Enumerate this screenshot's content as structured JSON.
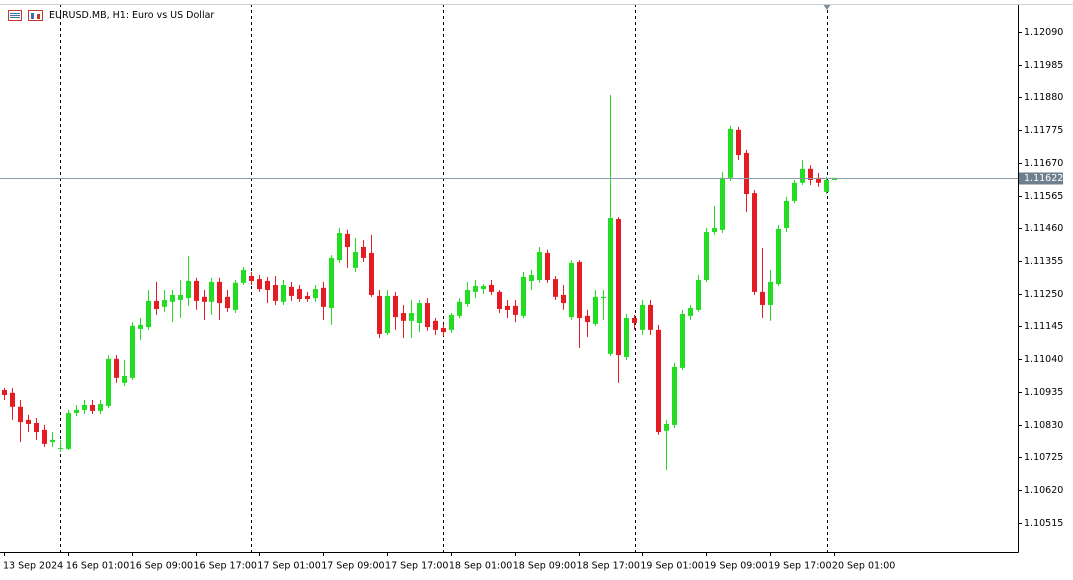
{
  "chart_data": {
    "type": "candlestick",
    "title": "EURUSD.MB, H1:  Euro vs US Dollar",
    "up_color": "#22dd22",
    "down_color": "#e51c23",
    "grid": false,
    "categories": [
      "13 Sep 2024",
      null,
      null,
      null,
      null,
      null,
      null,
      null,
      "16 Sep 01:00",
      null,
      null,
      null,
      null,
      null,
      null,
      null,
      "16 Sep 09:00",
      null,
      null,
      null,
      null,
      null,
      null,
      null,
      "16 Sep 17:00",
      null,
      null,
      null,
      null,
      null,
      null,
      null,
      "17 Sep 01:00",
      null,
      null,
      null,
      null,
      null,
      null,
      null,
      "17 Sep 09:00",
      null,
      null,
      null,
      null,
      null,
      null,
      null,
      "17 Sep 17:00",
      null,
      null,
      null,
      null,
      null,
      null,
      null,
      "18 Sep 01:00",
      null,
      null,
      null,
      null,
      null,
      null,
      null,
      "18 Sep 09:00",
      null,
      null,
      null,
      null,
      null,
      null,
      null,
      "18 Sep 17:00",
      null,
      null,
      null,
      null,
      null,
      null,
      null,
      "19 Sep 01:00",
      null,
      null,
      null,
      null,
      null,
      null,
      null,
      "19 Sep 09:00",
      null,
      null,
      null,
      null,
      null,
      null,
      null,
      "19 Sep 17:00",
      null,
      null,
      null,
      null,
      null,
      null,
      null,
      "20 Sep 01:00"
    ],
    "open": [
      1.10941,
      1.10932,
      1.10887,
      1.10845,
      1.10835,
      1.10813,
      1.10774,
      1.10752,
      1.10752,
      1.10867,
      1.10877,
      1.10893,
      1.10874,
      1.1089,
      1.11041,
      1.10964,
      1.1098,
      1.11137,
      1.11143,
      1.11227,
      1.11208,
      1.11224,
      1.1123,
      1.11236,
      1.11291,
      1.1124,
      1.11224,
      1.11288,
      1.1124,
      1.11198,
      1.11285,
      1.11307,
      1.11297,
      1.11291,
      1.11278,
      1.11224,
      1.11272,
      1.11265,
      1.11243,
      1.11236,
      1.11269,
      1.11204,
      1.11358,
      1.11442,
      1.11333,
      1.114,
      1.11381,
      1.11243,
      1.11124,
      1.11243,
      1.11188,
      1.11163,
      1.11156,
      1.1122,
      1.11163,
      1.1114,
      1.11134,
      1.11179,
      1.11217,
      1.11256,
      1.11265,
      1.11278,
      1.11256,
      1.11211,
      1.11211,
      1.11179,
      1.11291,
      1.11294,
      1.11381,
      1.11297,
      1.11246,
      1.11175,
      1.11352,
      1.11179,
      1.11153,
      1.11236,
      1.11057,
      1.1149,
      1.11047,
      1.11172,
      1.11134,
      1.11214,
      1.11134,
      1.1081,
      1.10829,
      1.11012,
      1.11179,
      1.11198,
      1.11294,
      1.11448,
      1.11455,
      1.11622,
      1.11776,
      1.11702,
      1.11573,
      1.11256,
      1.11214,
      1.11281,
      1.11461,
      1.11548,
      1.11606,
      1.11651,
      1.11622,
      1.11577,
      1.11615
    ],
    "high": [
      1.10948,
      1.10948,
      1.10909,
      1.10861,
      1.10851,
      1.10829,
      1.10806,
      1.10781,
      1.10877,
      1.10893,
      1.10909,
      1.10909,
      1.10909,
      1.11053,
      1.11053,
      1.11037,
      1.11159,
      1.11172,
      1.11262,
      1.11288,
      1.11262,
      1.11262,
      1.11294,
      1.11371,
      1.11301,
      1.11262,
      1.11301,
      1.11301,
      1.11262,
      1.11294,
      1.11336,
      1.1132,
      1.1131,
      1.11304,
      1.11307,
      1.11294,
      1.11288,
      1.11278,
      1.11256,
      1.11278,
      1.11288,
      1.11374,
      1.11461,
      1.11455,
      1.11429,
      1.11423,
      1.11439,
      1.11262,
      1.11262,
      1.11256,
      1.11214,
      1.1123,
      1.1123,
      1.11236,
      1.11172,
      1.1115,
      1.11188,
      1.11236,
      1.11288,
      1.11294,
      1.11281,
      1.11294,
      1.11262,
      1.1123,
      1.1123,
      1.1132,
      1.11326,
      1.114,
      1.11391,
      1.11307,
      1.11278,
      1.11358,
      1.11358,
      1.11198,
      1.11262,
      1.11262,
      1.11888,
      1.11496,
      1.11185,
      1.11182,
      1.1123,
      1.1123,
      1.1115,
      1.10845,
      1.11028,
      1.11198,
      1.11214,
      1.1131,
      1.11461,
      1.11532,
      1.11641,
      1.11789,
      1.11785,
      1.11712,
      1.11583,
      1.11397,
      1.11326,
      1.11471,
      1.11561,
      1.11615,
      1.11679,
      1.11663,
      1.11638,
      1.11625,
      1.11622
    ],
    "low": [
      1.10909,
      1.10845,
      1.10774,
      1.10806,
      1.10781,
      1.10758,
      1.10758,
      1.10742,
      1.10748,
      1.10858,
      1.10864,
      1.10864,
      1.10864,
      1.10883,
      1.10964,
      1.10954,
      1.10973,
      1.11102,
      1.11134,
      1.11182,
      1.11192,
      1.11159,
      1.11172,
      1.11211,
      1.11198,
      1.11166,
      1.11182,
      1.11166,
      1.11192,
      1.11188,
      1.11278,
      1.11278,
      1.11256,
      1.1122,
      1.11214,
      1.11214,
      1.11227,
      1.11224,
      1.11224,
      1.11224,
      1.11166,
      1.1115,
      1.11349,
      1.11333,
      1.1132,
      1.11352,
      1.1124,
      1.11108,
      1.11118,
      1.11134,
      1.11108,
      1.11108,
      1.11127,
      1.11131,
      1.11118,
      1.11114,
      1.11124,
      1.11172,
      1.11208,
      1.11236,
      1.11249,
      1.11246,
      1.11188,
      1.11172,
      1.11159,
      1.11172,
      1.11262,
      1.11285,
      1.11285,
      1.1123,
      1.11198,
      1.11166,
      1.11076,
      1.11111,
      1.11147,
      1.11166,
      1.1105,
      1.10964,
      1.11037,
      1.11134,
      1.11118,
      1.11118,
      1.10797,
      1.10684,
      1.10819,
      1.11005,
      1.11166,
      1.11192,
      1.11288,
      1.11439,
      1.11445,
      1.11612,
      1.11679,
      1.11512,
      1.11246,
      1.11172,
      1.11163,
      1.11275,
      1.11448,
      1.11541,
      1.11599,
      1.11599,
      1.11593,
      1.1157,
      1.11615
    ],
    "close": [
      1.10925,
      1.10887,
      1.10838,
      1.10832,
      1.10806,
      1.10768,
      1.10781,
      1.10755,
      1.10867,
      1.10877,
      1.10893,
      1.10874,
      1.10896,
      1.11041,
      1.1098,
      1.10986,
      1.11147,
      1.1115,
      1.11227,
      1.11201,
      1.1123,
      1.11246,
      1.11246,
      1.11291,
      1.11227,
      1.11224,
      1.11288,
      1.1122,
      1.11204,
      1.11285,
      1.11326,
      1.11291,
      1.11265,
      1.11262,
      1.11227,
      1.11278,
      1.11243,
      1.11233,
      1.11233,
      1.11265,
      1.11208,
      1.11365,
      1.11445,
      1.114,
      1.11384,
      1.11365,
      1.11246,
      1.11121,
      1.11243,
      1.11175,
      1.11163,
      1.11188,
      1.1122,
      1.11143,
      1.11134,
      1.11127,
      1.11182,
      1.11224,
      1.11262,
      1.11275,
      1.11275,
      1.11256,
      1.11201,
      1.11198,
      1.11182,
      1.11304,
      1.1131,
      1.11384,
      1.11294,
      1.1124,
      1.1122,
      1.11349,
      1.11172,
      1.11159,
      1.1124,
      1.1124,
      1.11493,
      1.11053,
      1.11172,
      1.11156,
      1.11214,
      1.11134,
      1.10806,
      1.10832,
      1.11015,
      1.11185,
      1.11204,
      1.11294,
      1.11448,
      1.11461,
      1.11622,
      1.11779,
      1.11695,
      1.1157,
      1.11256,
      1.11214,
      1.11288,
      1.11458,
      1.11548,
      1.11606,
      1.11651,
      1.11615,
      1.11606,
      1.11615,
      1.11622
    ],
    "ylim": [
      1.10421,
      1.1218
    ],
    "yticks": [
      {
        "value": 1.1209,
        "label": "1.12090"
      },
      1.11985,
      {
        "value": 1.1188,
        "label": "1.11880"
      },
      1.11775,
      {
        "value": 1.1167,
        "label": "1.11670"
      },
      1.11565,
      {
        "value": 1.1146,
        "label": "1.11460"
      },
      1.11355,
      {
        "value": 1.1125,
        "label": "1.11250"
      },
      1.11145,
      {
        "value": 1.1104,
        "label": "1.11040"
      },
      1.10935,
      {
        "value": 1.1083,
        "label": "1.10830"
      },
      1.10725,
      {
        "value": 1.1062,
        "label": "1.10620"
      },
      1.10515
    ],
    "last_price": 1.11622,
    "last_price_color": "#8a9aa8"
  }
}
